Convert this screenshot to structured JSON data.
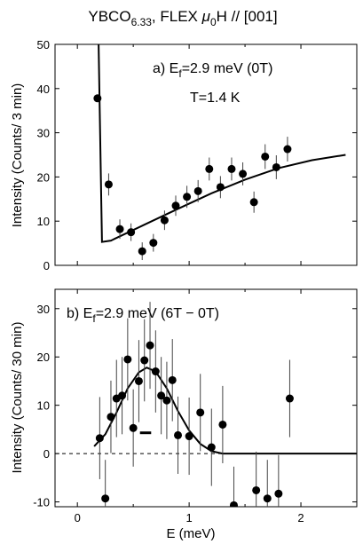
{
  "title": {
    "main": "YBCO",
    "sub": "6.33",
    "rest": ", FLEX ",
    "mu": "μ",
    "mu_sub": "0",
    "tail": "H // [001]"
  },
  "chart_data": [
    {
      "type": "scatter",
      "panel": "a",
      "annotation": {
        "prefix": "a) E",
        "sub": "f",
        "rest": "=2.9 meV (0T)"
      },
      "annotation2": "T=1.4 K",
      "ylabel": "Intensity (Counts/ 3 min)",
      "xlim": [
        -0.2,
        2.5
      ],
      "ylim": [
        0,
        50
      ],
      "xticks": [],
      "yticks": [
        0,
        10,
        20,
        30,
        40,
        50
      ],
      "series": [
        {
          "points": [
            {
              "x": 0.18,
              "y": 37.8
            },
            {
              "x": 0.28,
              "y": 18.3
            },
            {
              "x": 0.38,
              "y": 8.2
            },
            {
              "x": 0.48,
              "y": 7.5
            },
            {
              "x": 0.58,
              "y": 3.2
            },
            {
              "x": 0.68,
              "y": 5.1
            },
            {
              "x": 0.78,
              "y": 10.2
            },
            {
              "x": 0.88,
              "y": 13.5
            },
            {
              "x": 0.98,
              "y": 15.5
            },
            {
              "x": 1.08,
              "y": 16.8
            },
            {
              "x": 1.18,
              "y": 21.8
            },
            {
              "x": 1.28,
              "y": 17.7
            },
            {
              "x": 1.38,
              "y": 21.8
            },
            {
              "x": 1.48,
              "y": 20.7
            },
            {
              "x": 1.58,
              "y": 14.3
            },
            {
              "x": 1.68,
              "y": 24.6
            },
            {
              "x": 1.78,
              "y": 22.2
            },
            {
              "x": 1.88,
              "y": 26.3
            }
          ],
          "errors": [
            0,
            2.5,
            2.2,
            2.0,
            2.0,
            2.0,
            2.2,
            2.3,
            2.5,
            2.5,
            2.6,
            2.5,
            2.6,
            2.6,
            2.4,
            2.8,
            2.7,
            2.8
          ]
        }
      ],
      "fit_line": [
        {
          "x": 0.19,
          "y": 50
        },
        {
          "x": 0.22,
          "y": 5.3
        },
        {
          "x": 0.3,
          "y": 5.6
        },
        {
          "x": 0.6,
          "y": 9.2
        },
        {
          "x": 0.9,
          "y": 12.8
        },
        {
          "x": 1.2,
          "y": 16.3
        },
        {
          "x": 1.5,
          "y": 19.4
        },
        {
          "x": 1.8,
          "y": 22.0
        },
        {
          "x": 2.1,
          "y": 23.8
        },
        {
          "x": 2.4,
          "y": 25.0
        }
      ]
    },
    {
      "type": "scatter",
      "panel": "b",
      "annotation": {
        "prefix": "b) E",
        "sub": "f",
        "rest": "=2.9 meV (6T − 0T)"
      },
      "ylabel": "Intensity (Counts/ 30 min)",
      "xlabel": "E (meV)",
      "xlim": [
        -0.2,
        2.5
      ],
      "ylim": [
        -11,
        34
      ],
      "xticks": [
        0,
        1,
        2
      ],
      "yticks": [
        -10,
        0,
        10,
        20,
        30
      ],
      "series": [
        {
          "points": [
            {
              "x": 0.2,
              "y": 3.2
            },
            {
              "x": 0.25,
              "y": -9.3
            },
            {
              "x": 0.3,
              "y": 7.6
            },
            {
              "x": 0.35,
              "y": 11.4
            },
            {
              "x": 0.4,
              "y": 12.0
            },
            {
              "x": 0.45,
              "y": 19.5
            },
            {
              "x": 0.5,
              "y": 5.3
            },
            {
              "x": 0.55,
              "y": 15.0
            },
            {
              "x": 0.6,
              "y": 19.3
            },
            {
              "x": 0.65,
              "y": 22.4
            },
            {
              "x": 0.7,
              "y": 17.0
            },
            {
              "x": 0.75,
              "y": 12.0
            },
            {
              "x": 0.8,
              "y": 11.0
            },
            {
              "x": 0.85,
              "y": 15.2
            },
            {
              "x": 0.9,
              "y": 3.8
            },
            {
              "x": 1.0,
              "y": 3.6
            },
            {
              "x": 1.1,
              "y": 8.5
            },
            {
              "x": 1.2,
              "y": 1.3
            },
            {
              "x": 1.3,
              "y": 6.0
            },
            {
              "x": 1.4,
              "y": -10.7
            },
            {
              "x": 1.6,
              "y": -7.6
            },
            {
              "x": 1.7,
              "y": -9.3
            },
            {
              "x": 1.8,
              "y": -8.3
            },
            {
              "x": 1.9,
              "y": 11.4
            }
          ],
          "errors": [
            8.5,
            8.0,
            7.5,
            8.0,
            8.0,
            8.5,
            8.0,
            8.5,
            8.5,
            9.0,
            8.5,
            8.0,
            8.0,
            8.5,
            8.0,
            8.0,
            8.0,
            8.0,
            8.0,
            8.0,
            8.0,
            8.0,
            8.0,
            8.0
          ]
        }
      ],
      "fit_line": [
        {
          "x": 0.15,
          "y": 1.5
        },
        {
          "x": 0.25,
          "y": 4.0
        },
        {
          "x": 0.35,
          "y": 8.5
        },
        {
          "x": 0.45,
          "y": 13.5
        },
        {
          "x": 0.55,
          "y": 16.8
        },
        {
          "x": 0.62,
          "y": 17.8
        },
        {
          "x": 0.7,
          "y": 17.0
        },
        {
          "x": 0.8,
          "y": 13.5
        },
        {
          "x": 0.9,
          "y": 8.8
        },
        {
          "x": 1.0,
          "y": 4.8
        },
        {
          "x": 1.1,
          "y": 2.0
        },
        {
          "x": 1.2,
          "y": 0.5
        },
        {
          "x": 1.3,
          "y": 0.0
        },
        {
          "x": 2.5,
          "y": 0.0
        }
      ],
      "resolution_bar": {
        "x1": 0.56,
        "x2": 0.66,
        "y": 4.3
      },
      "zero_line": 0
    }
  ]
}
